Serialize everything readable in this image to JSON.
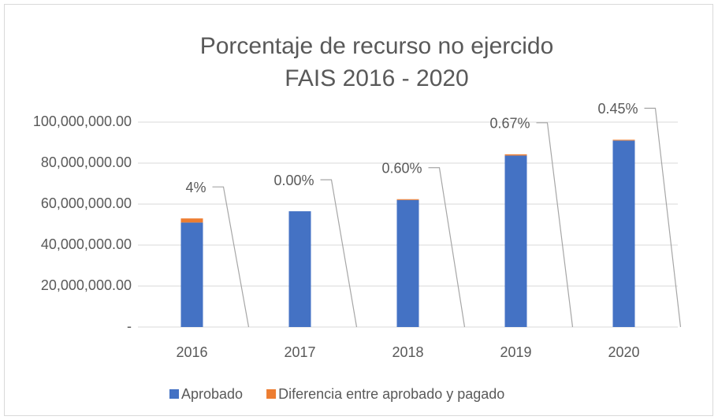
{
  "chart_data": {
    "type": "stacked_bar",
    "title": [
      "Porcentaje de recurso no ejercido",
      "FAIS 2016 - 2020"
    ],
    "categories": [
      "2016",
      "2017",
      "2018",
      "2019",
      "2020"
    ],
    "series": [
      {
        "name": "Aprobado",
        "color": "#4472c4",
        "values": [
          51000000,
          56500000,
          62000000,
          83700000,
          91000000
        ]
      },
      {
        "name": "Diferencia entre aprobado y pagado",
        "color": "#ed7d31",
        "values": [
          2000000,
          0,
          400000,
          600000,
          400000
        ]
      }
    ],
    "percent_labels": [
      "4%",
      "0.00%",
      "0.60%",
      "0.67%",
      "0.45%"
    ],
    "ylim": [
      0,
      100000000
    ],
    "yticks": [
      {
        "value": 0,
        "label": "-"
      },
      {
        "value": 20000000,
        "label": "20,000,000.00"
      },
      {
        "value": 40000000,
        "label": "40,000,000.00"
      },
      {
        "value": 60000000,
        "label": "60,000,000.00"
      },
      {
        "value": 80000000,
        "label": "80,000,000.00"
      },
      {
        "value": 100000000,
        "label": "100,000,000.00"
      }
    ],
    "grid": true,
    "legend": "bottom"
  }
}
